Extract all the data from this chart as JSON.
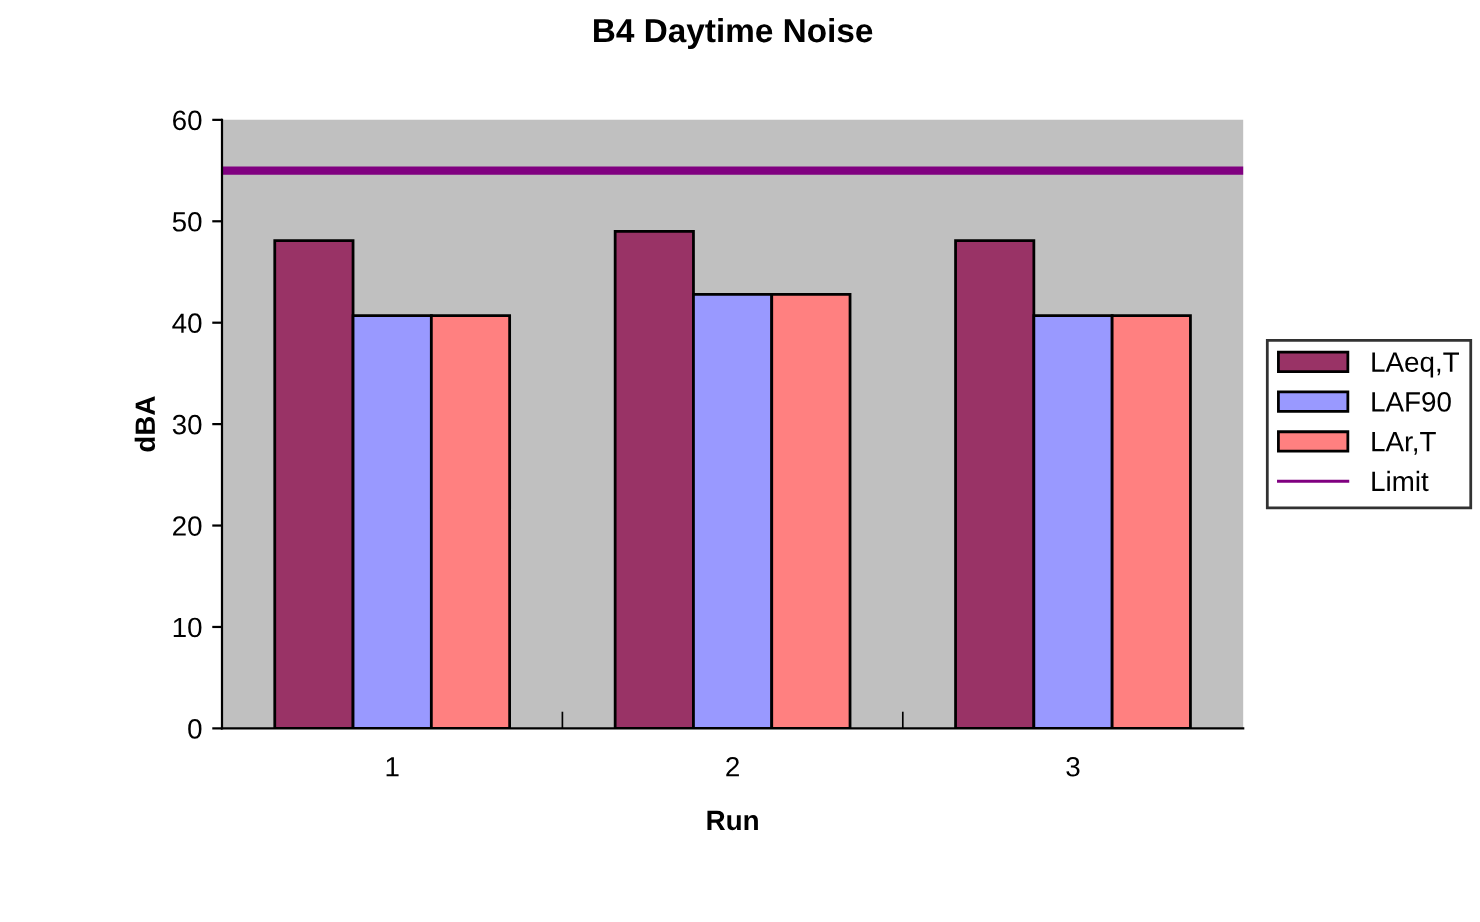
{
  "chart_data": {
    "type": "bar",
    "title": "B4 Daytime Noise",
    "xlabel": "Run",
    "ylabel": "dBA",
    "categories": [
      "1",
      "2",
      "3"
    ],
    "series": [
      {
        "name": "LAeq,T",
        "color": "#993366",
        "values": [
          48.1,
          49.0,
          48.1
        ]
      },
      {
        "name": "LAF90",
        "color": "#9999ff",
        "values": [
          40.7,
          42.8,
          40.7
        ]
      },
      {
        "name": "LAr,T",
        "color": "#ff8080",
        "values": [
          40.7,
          42.8,
          40.7
        ]
      }
    ],
    "ref_lines": [
      {
        "axis": "y",
        "value": 55,
        "label": "Limit",
        "color": "#800080",
        "line_style": "solid"
      }
    ],
    "ylim": [
      0,
      60
    ],
    "yticks": [
      0,
      10,
      20,
      30,
      40,
      50,
      60
    ],
    "grid": false,
    "legend": "right"
  }
}
